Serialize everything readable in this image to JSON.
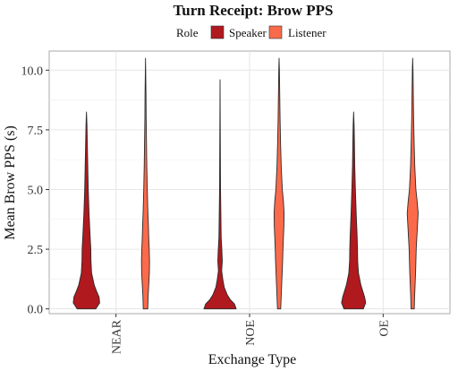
{
  "chart_data": {
    "type": "violin",
    "title": "Turn Receipt: Brow PPS",
    "xlabel": "Exchange Type",
    "ylabel": "Mean Brow PPS (s)",
    "ylim": [
      -0.2,
      10.8
    ],
    "yticks": [
      0.0,
      2.5,
      5.0,
      7.5,
      10.0
    ],
    "ytick_labels": [
      "0.0",
      "2.5",
      "5.0",
      "7.5",
      "10.0"
    ],
    "categories": [
      "NEAR",
      "NOE",
      "OE"
    ],
    "grid": true,
    "legend": {
      "title": "Role",
      "position": "top",
      "entries": [
        {
          "name": "Speaker",
          "color": "#B0191E"
        },
        {
          "name": "Listener",
          "color": "#FB6A4A"
        }
      ]
    },
    "series": [
      {
        "name": "Speaker",
        "color": "#B0191E",
        "violins": [
          {
            "category": "NEAR",
            "profile": [
              [
                0,
                0.58
              ],
              [
                0.25,
                0.82
              ],
              [
                0.5,
                0.78
              ],
              [
                0.75,
                0.62
              ],
              [
                1.0,
                0.48
              ],
              [
                1.5,
                0.32
              ],
              [
                2.0,
                0.28
              ],
              [
                2.5,
                0.27
              ],
              [
                3.0,
                0.23
              ],
              [
                4.0,
                0.16
              ],
              [
                5.0,
                0.11
              ],
              [
                6.0,
                0.08
              ],
              [
                7.0,
                0.05
              ],
              [
                7.7,
                0.03
              ],
              [
                8.25,
                0
              ]
            ]
          },
          {
            "category": "NOE",
            "profile": [
              [
                0,
                1.0
              ],
              [
                0.2,
                0.9
              ],
              [
                0.4,
                0.62
              ],
              [
                0.6,
                0.44
              ],
              [
                0.9,
                0.26
              ],
              [
                1.2,
                0.18
              ],
              [
                1.6,
                0.1
              ],
              [
                2.0,
                0.14
              ],
              [
                2.5,
                0.11
              ],
              [
                3.0,
                0.07
              ],
              [
                4.0,
                0.05
              ],
              [
                5.0,
                0.03
              ],
              [
                6.5,
                0.02
              ],
              [
                8.0,
                0.01
              ],
              [
                9.6,
                0
              ]
            ]
          },
          {
            "category": "OE",
            "profile": [
              [
                0,
                0.6
              ],
              [
                0.25,
                0.75
              ],
              [
                0.5,
                0.68
              ],
              [
                1.0,
                0.45
              ],
              [
                1.5,
                0.3
              ],
              [
                2.0,
                0.25
              ],
              [
                2.5,
                0.24
              ],
              [
                3.0,
                0.22
              ],
              [
                4.0,
                0.16
              ],
              [
                5.0,
                0.11
              ],
              [
                6.0,
                0.07
              ],
              [
                7.0,
                0.05
              ],
              [
                7.7,
                0.03
              ],
              [
                8.25,
                0
              ]
            ]
          }
        ]
      },
      {
        "name": "Listener",
        "color": "#FB6A4A",
        "violins": [
          {
            "category": "NEAR",
            "profile": [
              [
                0,
                0.14
              ],
              [
                0.5,
                0.16
              ],
              [
                1.0,
                0.2
              ],
              [
                1.5,
                0.24
              ],
              [
                2.0,
                0.25
              ],
              [
                2.5,
                0.23
              ],
              [
                3.0,
                0.2
              ],
              [
                3.5,
                0.18
              ],
              [
                4.0,
                0.15
              ],
              [
                5.0,
                0.11
              ],
              [
                6.0,
                0.08
              ],
              [
                7.0,
                0.06
              ],
              [
                8.0,
                0.04
              ],
              [
                9.0,
                0.03
              ],
              [
                10.0,
                0.01
              ],
              [
                10.5,
                0
              ]
            ]
          },
          {
            "category": "NOE",
            "profile": [
              [
                0,
                0.1
              ],
              [
                0.5,
                0.13
              ],
              [
                1.0,
                0.16
              ],
              [
                1.5,
                0.19
              ],
              [
                2.0,
                0.22
              ],
              [
                2.5,
                0.24
              ],
              [
                3.0,
                0.27
              ],
              [
                3.5,
                0.3
              ],
              [
                4.0,
                0.31
              ],
              [
                4.5,
                0.27
              ],
              [
                5.0,
                0.2
              ],
              [
                6.0,
                0.13
              ],
              [
                7.0,
                0.09
              ],
              [
                8.0,
                0.06
              ],
              [
                9.0,
                0.04
              ],
              [
                10.0,
                0.02
              ],
              [
                10.5,
                0
              ]
            ]
          },
          {
            "category": "OE",
            "profile": [
              [
                0,
                0.1
              ],
              [
                0.5,
                0.12
              ],
              [
                1.0,
                0.15
              ],
              [
                1.5,
                0.18
              ],
              [
                2.0,
                0.2
              ],
              [
                2.5,
                0.22
              ],
              [
                3.0,
                0.26
              ],
              [
                3.5,
                0.3
              ],
              [
                4.0,
                0.34
              ],
              [
                4.5,
                0.28
              ],
              [
                5.0,
                0.2
              ],
              [
                6.0,
                0.13
              ],
              [
                7.0,
                0.09
              ],
              [
                8.0,
                0.06
              ],
              [
                9.0,
                0.04
              ],
              [
                10.0,
                0.02
              ],
              [
                10.5,
                0
              ]
            ]
          }
        ]
      }
    ]
  }
}
